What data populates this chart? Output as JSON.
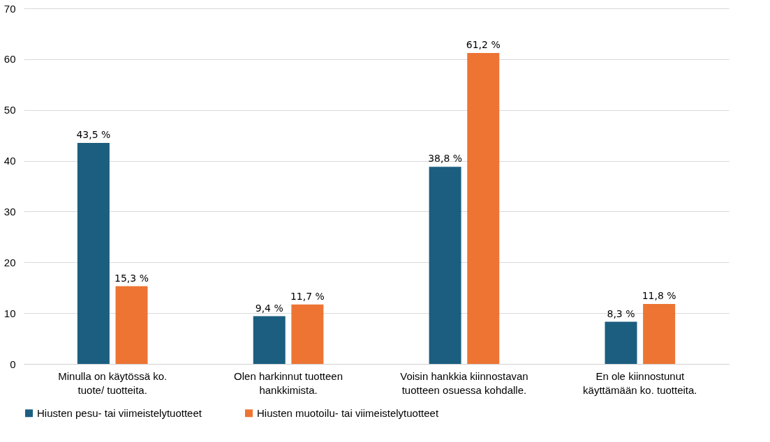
{
  "chart_data": {
    "type": "bar",
    "categories": [
      "Minulla on käytössä ko. tuote/ tuotteita.",
      "Olen harkinnut tuotteen hankkimista.",
      "Voisin hankkia kiinnostavan tuotteen osuessa kohdalle.",
      "En ole kiinnostunut käyttämään ko. tuotteita."
    ],
    "series": [
      {
        "name": "Hiusten pesu- tai viimeistelytuotteet",
        "color": "#1b5e80",
        "values": [
          43.5,
          9.4,
          38.8,
          8.3
        ],
        "value_labels": [
          "43,5 %",
          "9,4 %",
          "38,8 %",
          "8,3 %"
        ]
      },
      {
        "name": "Hiusten muotoilu- tai viimeistelytuotteet",
        "color": "#ed7433",
        "values": [
          15.3,
          11.7,
          61.2,
          11.8
        ],
        "value_labels": [
          "15,3 %",
          "11,7 %",
          "61,2 %",
          "11,8 %"
        ]
      }
    ],
    "ylim": [
      0,
      70
    ],
    "yticks": [
      0,
      10,
      20,
      30,
      40,
      50,
      60,
      70
    ],
    "grid": "y",
    "legend": "bottom"
  }
}
